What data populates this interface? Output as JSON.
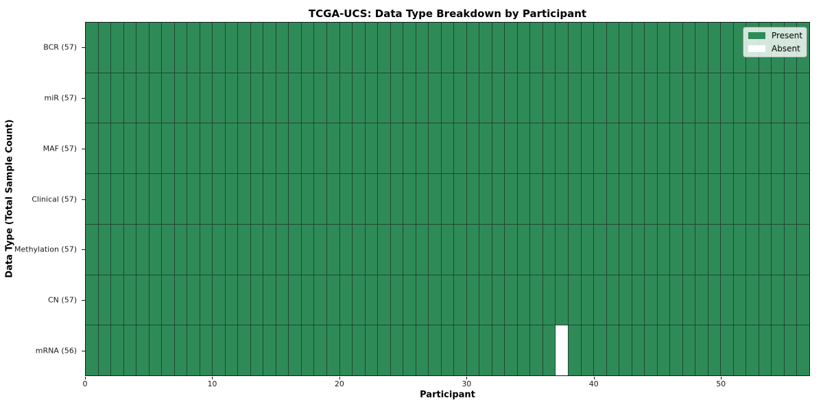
{
  "title": "TCGA-UCS: Data Type Breakdown by Participant",
  "x_axis": {
    "label": "Participant",
    "tick_values": [
      0,
      10,
      20,
      30,
      40,
      50
    ],
    "range": [
      0,
      57
    ]
  },
  "y_axis": {
    "label": "Data Type (Total Sample Count)"
  },
  "legend": {
    "position": "upper right",
    "items": [
      {
        "label": "Present",
        "color": "#2e8b57"
      },
      {
        "label": "Absent",
        "color": "#ffffff"
      }
    ]
  },
  "colors": {
    "present": "#2e8b57",
    "absent": "#ffffff",
    "grid_line": "#1f4631",
    "spine": "#1a1a1a"
  },
  "chart_data": {
    "type": "heatmap",
    "title": "TCGA-UCS: Data Type Breakdown by Participant",
    "xlabel": "Participant",
    "ylabel": "Data Type (Total Sample Count)",
    "x_range": [
      0,
      57
    ],
    "x_ticks": [
      0,
      10,
      20,
      30,
      40,
      50
    ],
    "n_participants": 57,
    "grid": true,
    "legend_position": "upper right",
    "legend_entries": [
      "Present",
      "Absent"
    ],
    "categories": [
      "BCR (57)",
      "miR (57)",
      "MAF (57)",
      "Clinical (57)",
      "Methylation (57)",
      "CN (57)",
      "mRNA (56)"
    ],
    "rows": [
      {
        "label": "BCR (57)",
        "data_type": "BCR",
        "total_samples": 57,
        "present_count": 57,
        "absent_participants": []
      },
      {
        "label": "miR (57)",
        "data_type": "miR",
        "total_samples": 57,
        "present_count": 57,
        "absent_participants": []
      },
      {
        "label": "MAF (57)",
        "data_type": "MAF",
        "total_samples": 57,
        "present_count": 57,
        "absent_participants": []
      },
      {
        "label": "Clinical (57)",
        "data_type": "Clinical",
        "total_samples": 57,
        "present_count": 57,
        "absent_participants": []
      },
      {
        "label": "Methylation (57)",
        "data_type": "Methylation",
        "total_samples": 57,
        "present_count": 57,
        "absent_participants": []
      },
      {
        "label": "CN (57)",
        "data_type": "CN",
        "total_samples": 57,
        "present_count": 57,
        "absent_participants": []
      },
      {
        "label": "mRNA (56)",
        "data_type": "mRNA",
        "total_samples": 56,
        "present_count": 56,
        "absent_participants": [
          37
        ]
      }
    ]
  }
}
